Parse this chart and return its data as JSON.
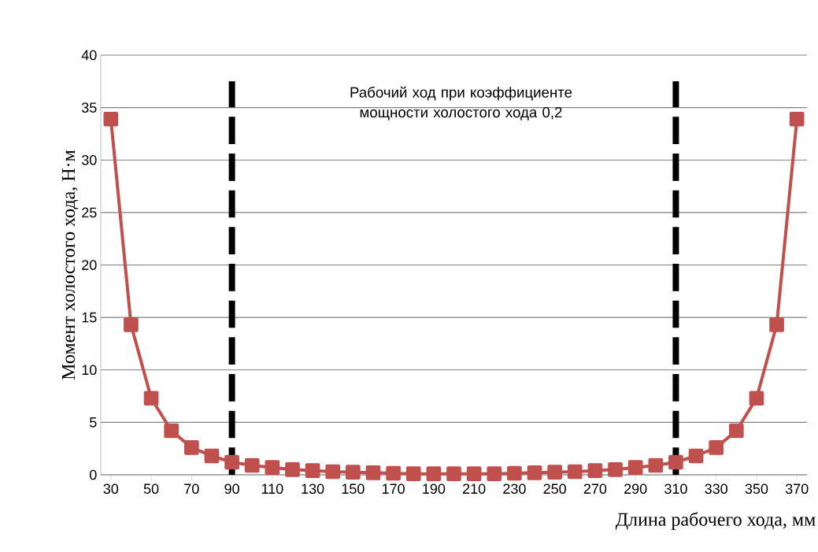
{
  "chart_data": {
    "type": "line",
    "xlabel": "Длина рабочего хода, мм",
    "ylabel": "Момент холостого хода, Н·м",
    "x": [
      30,
      40,
      50,
      60,
      70,
      80,
      90,
      100,
      110,
      120,
      130,
      140,
      150,
      160,
      170,
      180,
      190,
      200,
      210,
      220,
      230,
      240,
      250,
      260,
      270,
      280,
      290,
      300,
      310,
      320,
      330,
      340,
      350,
      360,
      370
    ],
    "series": [
      {
        "color": "#c0504d",
        "values": [
          33.9,
          14.3,
          7.3,
          4.2,
          2.6,
          1.8,
          1.2,
          0.9,
          0.7,
          0.5,
          0.4,
          0.3,
          0.25,
          0.2,
          0.15,
          0.1,
          0.1,
          0.1,
          0.1,
          0.1,
          0.15,
          0.2,
          0.25,
          0.3,
          0.4,
          0.5,
          0.7,
          0.9,
          1.2,
          1.8,
          2.6,
          4.2,
          7.3,
          14.3,
          33.9
        ]
      }
    ],
    "xlim": [
      25,
      375
    ],
    "ylim": [
      0,
      40
    ],
    "xticks": [
      30,
      50,
      70,
      90,
      110,
      130,
      150,
      170,
      190,
      210,
      230,
      250,
      270,
      290,
      310,
      330,
      350,
      370
    ],
    "yticks": [
      0,
      5,
      10,
      15,
      20,
      25,
      30,
      35,
      40
    ],
    "grid": "y",
    "marker": "square",
    "line_style": "solid",
    "ref_lines": [
      {
        "axis": "x",
        "value": 90,
        "color": "#000000",
        "line_style": "dashed"
      },
      {
        "axis": "x",
        "value": 310,
        "color": "#000000",
        "line_style": "dashed"
      }
    ],
    "annotations": [
      "Рабочий ход при коэффициенте мощности холостого хода 0,2"
    ]
  }
}
